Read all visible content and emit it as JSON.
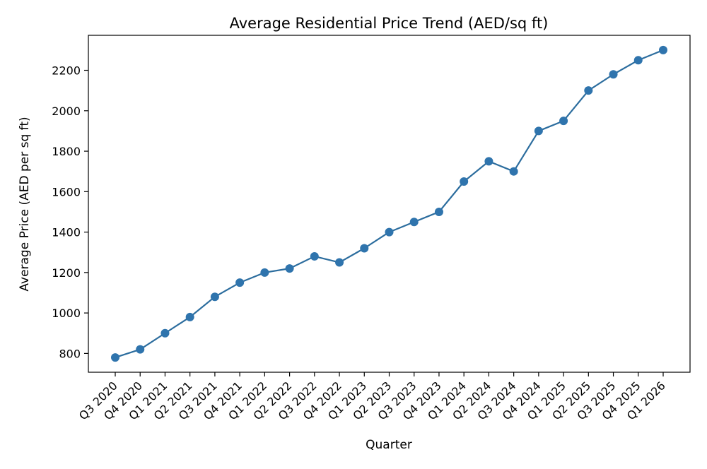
{
  "chart_data": {
    "type": "line",
    "title": "Average Residential Price Trend (AED/sq ft)",
    "xlabel": "Quarter",
    "ylabel": "Average Price (AED per sq ft)",
    "categories": [
      "Q3 2020",
      "Q4 2020",
      "Q1 2021",
      "Q2 2021",
      "Q3 2021",
      "Q4 2021",
      "Q1 2022",
      "Q2 2022",
      "Q3 2022",
      "Q4 2022",
      "Q1 2023",
      "Q2 2023",
      "Q3 2023",
      "Q4 2023",
      "Q1 2024",
      "Q2 2024",
      "Q3 2024",
      "Q4 2024",
      "Q1 2025",
      "Q2 2025",
      "Q3 2025",
      "Q4 2025",
      "Q1 2026"
    ],
    "series": [
      {
        "values": [
          780,
          820,
          900,
          980,
          1080,
          1150,
          1200,
          1220,
          1280,
          1250,
          1320,
          1400,
          1450,
          1500,
          1650,
          1750,
          1700,
          1900,
          1950,
          2100,
          2180,
          2250,
          2300
        ]
      }
    ],
    "yticks": [
      800,
      1000,
      1200,
      1400,
      1600,
      1800,
      2000,
      2200
    ],
    "ylim": [
      707,
      2373
    ],
    "grid": false,
    "legend": "none",
    "colors": {
      "series": "#2c6d9e",
      "marker": "#2f74ad",
      "axes": "#000000"
    }
  }
}
